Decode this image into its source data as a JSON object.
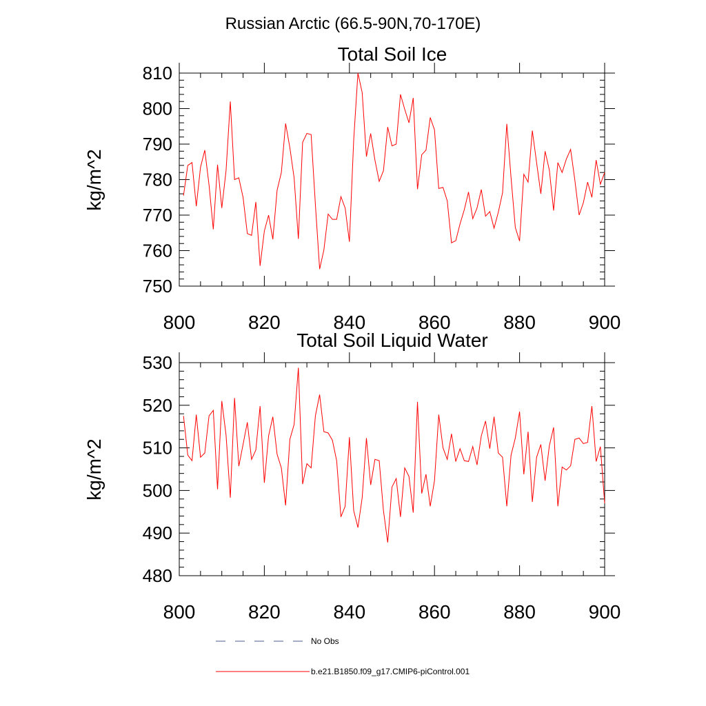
{
  "figure_title": "Russian Arctic (66.5-90N,70-170E)",
  "chart_data": [
    {
      "type": "line",
      "title": "Total Soil Ice",
      "xlabel": "",
      "ylabel": "kg/m^2",
      "xlim": [
        800,
        900
      ],
      "ylim": [
        750,
        810
      ],
      "xticks": [
        800,
        820,
        840,
        860,
        880,
        900
      ],
      "yticks": [
        750,
        760,
        770,
        780,
        790,
        800,
        810
      ],
      "x_start": 801,
      "series": [
        {
          "name": "b.e21.B1850.f09_g17.CMIP6-piControl.001",
          "color": "#ff0000",
          "values": [
            775.5,
            784.0,
            784.8,
            772.5,
            783.5,
            788.3,
            778.5,
            766.0,
            784.2,
            772.0,
            782.5,
            802.0,
            780.0,
            780.5,
            775.0,
            764.8,
            764.3,
            773.7,
            755.7,
            765.5,
            770.0,
            763.2,
            777.0,
            782.0,
            795.8,
            789.0,
            780.5,
            763.3,
            790.5,
            793.0,
            792.7,
            773.0,
            754.8,
            760.2,
            770.3,
            768.8,
            768.8,
            775.2,
            772.0,
            762.5,
            791.0,
            810.0,
            804.5,
            786.5,
            793.0,
            785.5,
            779.5,
            782.5,
            794.8,
            789.5,
            790.0,
            804.0,
            799.8,
            796.0,
            803.0,
            777.3,
            787.0,
            788.3,
            797.5,
            794.0,
            777.5,
            777.8,
            774.0,
            762.2,
            762.8,
            767.5,
            771.5,
            776.5,
            769.0,
            772.0,
            777.2,
            769.7,
            771.0,
            766.3,
            770.8,
            776.3,
            795.7,
            780.5,
            766.5,
            762.7,
            781.5,
            779.3,
            793.8,
            784.8,
            776.0,
            788.0,
            782.7,
            771.3,
            784.8,
            782.0,
            785.8,
            788.5,
            779.8,
            770.0,
            773.5,
            779.3,
            775.0,
            785.5,
            778.7,
            782.0
          ]
        }
      ]
    },
    {
      "type": "line",
      "title": "Total Soil Liquid Water",
      "xlabel": "",
      "ylabel": "kg/m^2",
      "xlim": [
        800,
        900
      ],
      "ylim": [
        480,
        530
      ],
      "xticks": [
        800,
        820,
        840,
        860,
        880,
        900
      ],
      "yticks": [
        480,
        490,
        500,
        510,
        520,
        530
      ],
      "x_start": 801,
      "series": [
        {
          "name": "b.e21.B1850.f09_g17.CMIP6-piControl.001",
          "color": "#ff0000",
          "values": [
            517.5,
            508.3,
            507.0,
            517.8,
            507.8,
            508.8,
            517.5,
            518.8,
            500.3,
            521.0,
            513.0,
            498.3,
            521.7,
            505.7,
            510.8,
            516.0,
            507.3,
            509.5,
            519.8,
            501.8,
            512.8,
            517.3,
            508.5,
            505.3,
            496.5,
            512.0,
            515.5,
            528.8,
            501.5,
            506.3,
            505.3,
            517.5,
            522.5,
            513.8,
            513.5,
            511.8,
            507.0,
            493.8,
            496.3,
            512.5,
            495.3,
            491.3,
            498.3,
            512.3,
            501.3,
            507.3,
            507.0,
            495.3,
            487.8,
            500.8,
            502.8,
            493.8,
            505.3,
            503.3,
            494.8,
            520.8,
            499.3,
            503.8,
            496.3,
            502.3,
            517.8,
            510.0,
            507.3,
            513.3,
            506.8,
            509.8,
            507.0,
            506.8,
            510.3,
            506.0,
            512.8,
            516.3,
            509.8,
            517.3,
            508.8,
            507.8,
            496.3,
            508.3,
            512.3,
            518.5,
            503.8,
            513.8,
            497.3,
            507.8,
            510.8,
            502.3,
            510.5,
            514.8,
            496.3,
            505.5,
            504.8,
            505.8,
            512.0,
            512.3,
            511.0,
            511.3,
            519.8,
            506.8,
            510.3,
            497.0
          ]
        }
      ]
    }
  ],
  "legend": {
    "items": [
      {
        "label": "No Obs",
        "color": "#4a5a8c",
        "style": "dashed"
      },
      {
        "label": "b.e21.B1850.f09_g17.CMIP6-piControl.001",
        "color": "#ff0000",
        "style": "solid"
      }
    ]
  }
}
